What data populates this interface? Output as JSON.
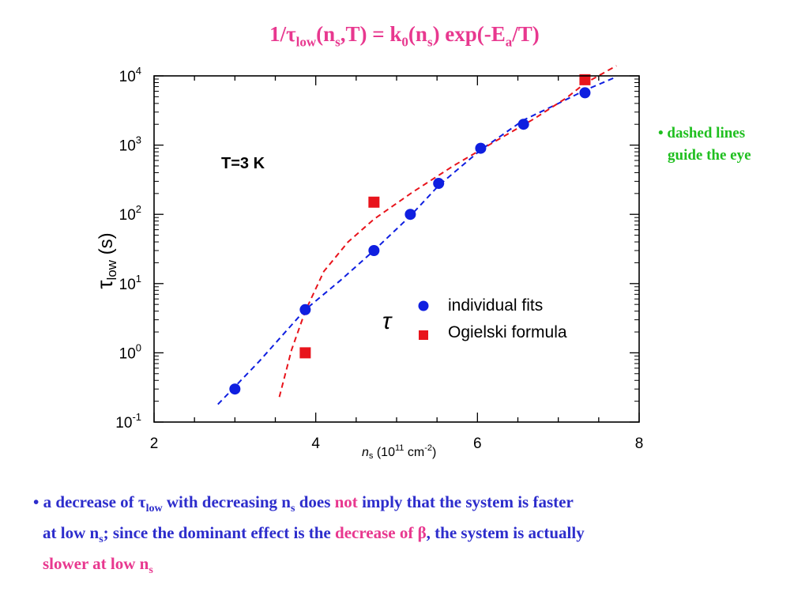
{
  "title": {
    "prefix": "1/τ",
    "sub_low": "low",
    "part2": "(n",
    "sub_s1": "s",
    "part3": ",T) = k",
    "sub_0": "0",
    "part4": "(n",
    "sub_s2": "s",
    "part5": ") exp(-E",
    "sub_a": "a",
    "part6": "/T)"
  },
  "side_note": {
    "line1": "• dashed lines",
    "line2": "guide the eye"
  },
  "bottom_text": {
    "l1_a": "• a decrease of τ",
    "l1_sub_low": "low",
    "l1_b": " with decreasing n",
    "l1_sub_s": "s",
    "l1_c": " does ",
    "l1_not": "not",
    "l1_d": " imply that the system is faster",
    "l2_a": "at low n",
    "l2_sub_s": "s",
    "l2_b": "; since the dominant effect is the ",
    "l2_dec": "decrease of β",
    "l2_c": ", the system is actually",
    "l3_a": "slower at low n",
    "l3_sub_s": "s"
  },
  "chart_data": {
    "type": "scatter",
    "xlabel": {
      "var": "n",
      "sub": "s",
      "unit_pre": " (10",
      "unit_exp": "11",
      "unit_mid": " cm",
      "unit_exp2": "-2",
      "unit_post": ")"
    },
    "ylabel": {
      "var": "τ",
      "sub": "low",
      "unit": " (s)"
    },
    "annotation": "T=3 K",
    "tau_symbol": "τ",
    "xlim": [
      2,
      8
    ],
    "ylog_range": [
      -1,
      4
    ],
    "yscale": "log",
    "x_ticks": [
      "2",
      "4",
      "6",
      "8"
    ],
    "y_ticks": [
      {
        "exp": -1,
        "base": "10",
        "sup": "-1"
      },
      {
        "exp": 0,
        "base": "10",
        "sup": "0"
      },
      {
        "exp": 1,
        "base": "10",
        "sup": "1"
      },
      {
        "exp": 2,
        "base": "10",
        "sup": "2"
      },
      {
        "exp": 3,
        "base": "10",
        "sup": "3"
      },
      {
        "exp": 4,
        "base": "10",
        "sup": "4"
      }
    ],
    "legend_position": "center-right",
    "series": [
      {
        "name": "individual fits",
        "marker": "circle",
        "color": "#0f1fe0",
        "x": [
          3.0,
          3.87,
          4.72,
          5.17,
          5.52,
          6.04,
          6.57,
          7.33
        ],
        "y": [
          0.3,
          4.2,
          30,
          100,
          280,
          900,
          2000,
          5700
        ]
      },
      {
        "name": "Ogielski formula",
        "marker": "square",
        "color": "#e8141c",
        "x": [
          3.87,
          4.72,
          7.33
        ],
        "y": [
          1.0,
          150,
          8800
        ]
      }
    ],
    "guide_lines": [
      {
        "color": "#0f1fe0",
        "x": [
          2.79,
          3.3,
          3.87,
          4.3,
          4.72,
          5.17,
          5.52,
          6.04,
          6.57,
          7.0,
          7.33,
          7.72
        ],
        "y": [
          0.18,
          0.75,
          4.2,
          11,
          30,
          95,
          260,
          850,
          2300,
          4000,
          6200,
          9700
        ]
      },
      {
        "color": "#e8141c",
        "x": [
          3.55,
          3.7,
          3.87,
          4.1,
          4.4,
          4.72,
          5.2,
          5.7,
          6.2,
          6.7,
          7.1,
          7.33,
          7.72
        ],
        "y": [
          0.23,
          1.1,
          4.0,
          15,
          40,
          85,
          210,
          500,
          1100,
          2400,
          4800,
          7800,
          14000
        ]
      }
    ]
  }
}
